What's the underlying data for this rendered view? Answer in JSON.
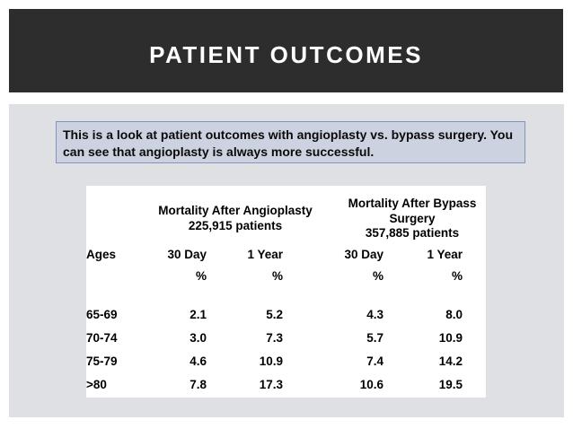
{
  "slide": {
    "title": "PATIENT OUTCOMES"
  },
  "intro": {
    "line1": "This is a look at patient outcomes with angioplasty vs. bypass surgery. You",
    "line2": "can see that angioplasty is always more successful."
  },
  "table": {
    "groups": [
      {
        "title": "Mortality After Angioplasty",
        "patients": "225,915 patients"
      },
      {
        "title": "Mortality After Bypass Surgery",
        "patients": "357,885 patients"
      }
    ],
    "columns": [
      "Ages",
      "30 Day",
      "1 Year",
      "30 Day",
      "1 Year"
    ],
    "unit": "%",
    "rows": [
      {
        "age": "65-69",
        "values": [
          "2.1",
          "5.2",
          "4.3",
          "8.0"
        ]
      },
      {
        "age": "70-74",
        "values": [
          "3.0",
          "7.3",
          "5.7",
          "10.9"
        ]
      },
      {
        "age": "75-79",
        "values": [
          "4.6",
          "10.9",
          "7.4",
          "14.2"
        ]
      },
      {
        "age": ">80",
        "values": [
          "7.8",
          "17.3",
          "10.6",
          "19.5"
        ]
      }
    ]
  },
  "colors": {
    "title_bar_bg": "#2d2d2d",
    "title_text": "#ffffff",
    "panel_bg": "#dfe0e3",
    "intro_bg": "#cdd2e0",
    "intro_border": "#8493b8",
    "table_bg": "#ffffff",
    "body_text": "#000000"
  }
}
